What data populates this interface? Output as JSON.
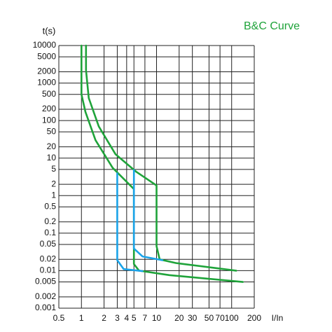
{
  "chart_data": {
    "type": "line",
    "title": "B&C Curve",
    "y_label": "t(s)",
    "x_label": "I/In",
    "log_x": true,
    "log_y": true,
    "grid": true,
    "xlim": [
      0.5,
      200
    ],
    "ylim": [
      0.001,
      10000
    ],
    "xticks": [
      0.5,
      1,
      2,
      3,
      4,
      5,
      7,
      10,
      20,
      30,
      50,
      70,
      100,
      200
    ],
    "yticks": [
      10000,
      5000,
      2000,
      1000,
      500,
      200,
      100,
      50,
      20,
      10,
      5,
      2,
      1,
      0.5,
      0.2,
      0.1,
      0.05,
      0.02,
      0.01,
      0.005,
      0.002,
      0.001
    ],
    "series": [
      {
        "color": "#1fa33a",
        "x": [
          1.15,
          1.15,
          1.25,
          1.7,
          2.85,
          5.3,
          10,
          10,
          11,
          18,
          115
        ],
        "y": [
          10000,
          2200,
          400,
          70,
          12.6,
          4.4,
          1.86,
          0.045,
          0.02,
          0.016,
          0.01
        ]
      },
      {
        "color": "#1fa33a",
        "x": [
          1,
          1,
          1.13,
          1.54,
          2.6,
          5,
          5,
          5.85,
          14.8,
          141
        ],
        "y": [
          10000,
          500,
          170,
          30,
          5.5,
          1.5,
          0.015,
          0.01,
          0.0076,
          0.005
        ]
      },
      {
        "color": "#1aa3e8",
        "x": [
          3,
          3,
          3.65,
          6.5
        ],
        "y": [
          3.9,
          0.019,
          0.011,
          0.0097
        ]
      },
      {
        "color": "#1aa3e8",
        "x": [
          5,
          5,
          6.5,
          12
        ],
        "y": [
          4.8,
          0.039,
          0.024,
          0.019
        ]
      }
    ]
  }
}
